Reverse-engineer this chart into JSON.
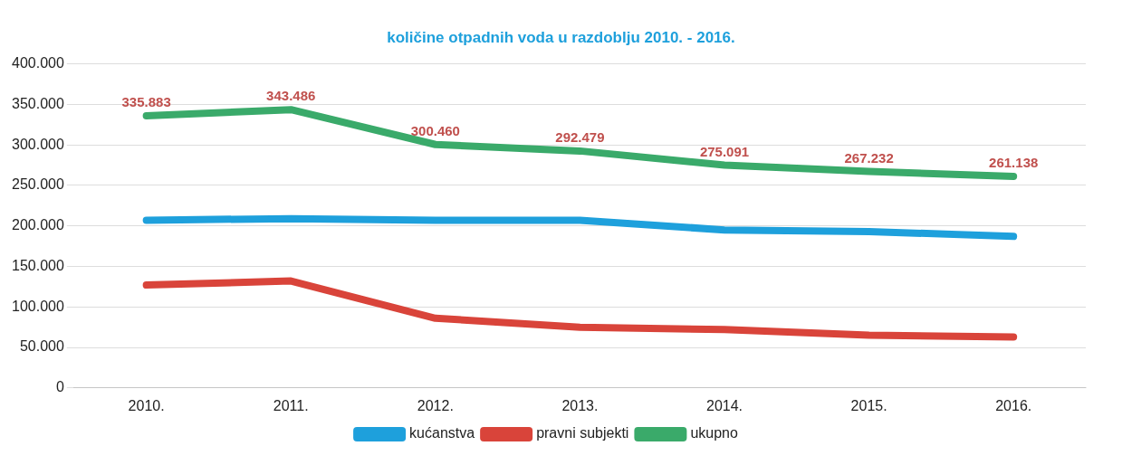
{
  "chart_data": {
    "type": "line",
    "title": "količine otpadnih voda u razdoblju 2010. - 2016.",
    "categories": [
      "2010.",
      "2011.",
      "2012.",
      "2013.",
      "2014.",
      "2015.",
      "2016."
    ],
    "series": [
      {
        "name": "kućanstva",
        "color": "#1ea0dc",
        "values": [
          207000,
          209000,
          207000,
          207000,
          195000,
          193000,
          187000
        ]
      },
      {
        "name": "pravni subjekti",
        "color": "#d9443a",
        "values": [
          127000,
          132000,
          86000,
          75000,
          72000,
          65000,
          63000
        ]
      },
      {
        "name": "ukupno",
        "color": "#3aaa6a",
        "values": [
          335883,
          343486,
          300460,
          292479,
          275091,
          267232,
          261138
        ],
        "value_labels": [
          "335.883",
          "343.486",
          "300.460",
          "292.479",
          "275.091",
          "267.232",
          "261.138"
        ]
      }
    ],
    "ylim": [
      0,
      400000
    ],
    "yticks": [
      {
        "value": 0,
        "label": "0"
      },
      {
        "value": 50000,
        "label": "50.000"
      },
      {
        "value": 100000,
        "label": "100.000"
      },
      {
        "value": 150000,
        "label": "150.000"
      },
      {
        "value": 200000,
        "label": "200.000"
      },
      {
        "value": 250000,
        "label": "250.000"
      },
      {
        "value": 300000,
        "label": "300.000"
      },
      {
        "value": 350000,
        "label": "350.000"
      },
      {
        "value": 400000,
        "label": "400.000"
      }
    ],
    "grid": "y",
    "legend": "bottom",
    "marker": "none",
    "line_style": "solid"
  }
}
